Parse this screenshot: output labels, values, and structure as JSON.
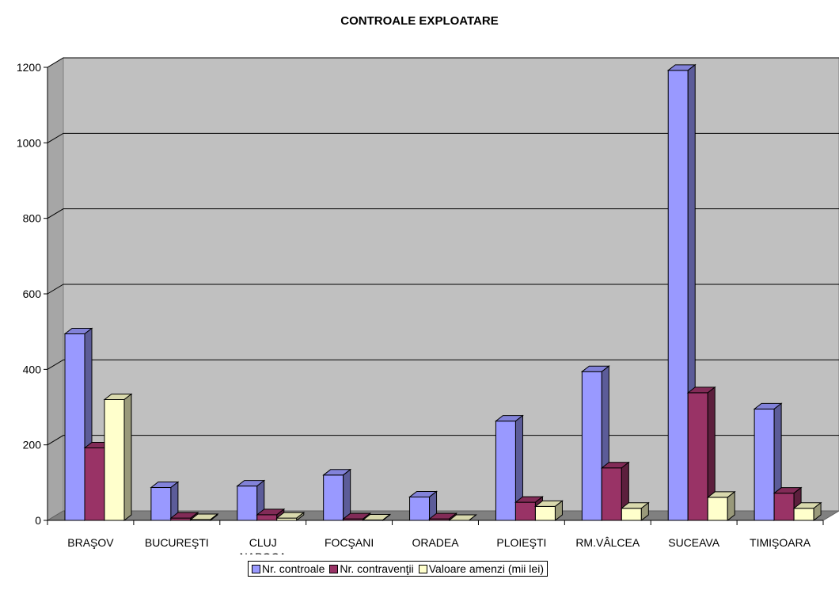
{
  "chart_data": {
    "type": "bar",
    "title": "CONTROALE EXPLOATARE",
    "categories": [
      "BRAŞOV",
      "BUCUREŞTI",
      "CLUJ NAPOCA",
      "FOCŞANI",
      "ORADEA",
      "PLOIEŞTI",
      "RM.VÂLCEA",
      "SUCEAVA",
      "TIMIŞOARA"
    ],
    "series": [
      {
        "name": "Nr. controale",
        "color": "#9999ff",
        "values": [
          494,
          87,
          91,
          120,
          62,
          263,
          394,
          1192,
          295
        ]
      },
      {
        "name": "Nr. contravenţii",
        "color": "#993366",
        "values": [
          192,
          6,
          15,
          4,
          4,
          48,
          139,
          338,
          72
        ]
      },
      {
        "name": "Valoare amenzi (mii lei)",
        "color": "#ffffcc",
        "values": [
          320,
          2,
          6,
          1,
          0,
          37,
          32,
          61,
          32
        ]
      }
    ],
    "ylim": [
      0,
      1200
    ],
    "yticks": [
      "0",
      "200",
      "400",
      "600",
      "800",
      "1000",
      "1200"
    ],
    "grid": true,
    "legend_position": "bottom",
    "plot_background": "#c0c0c0"
  }
}
